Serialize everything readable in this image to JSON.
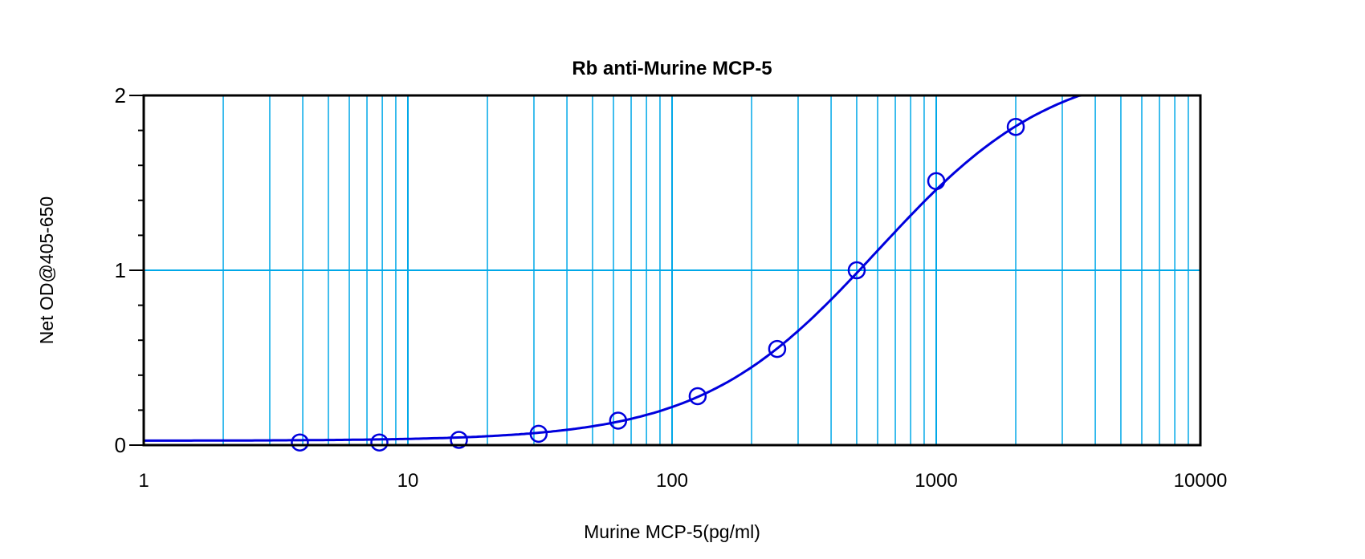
{
  "chart_data": {
    "type": "scatter",
    "title": "Rb anti-Murine MCP-5",
    "xlabel": "Murine MCP-5(pg/ml)",
    "ylabel": "Net OD@405-650",
    "x_scale": "log",
    "xlim": [
      1,
      10000
    ],
    "ylim": [
      0,
      2
    ],
    "x_ticks": [
      "1",
      "10",
      "100",
      "1000",
      "10000"
    ],
    "y_ticks": [
      "0",
      "1",
      "2"
    ],
    "grid": "vertical log minor lines and horizontal line at 1",
    "legend": "none",
    "fit_curve": "sigmoidal fit line through points",
    "points": [
      {
        "x": 3.9,
        "y": 0.015
      },
      {
        "x": 7.8,
        "y": 0.015
      },
      {
        "x": 15.6,
        "y": 0.03
      },
      {
        "x": 31.25,
        "y": 0.065
      },
      {
        "x": 62.5,
        "y": 0.14
      },
      {
        "x": 125,
        "y": 0.28
      },
      {
        "x": 250,
        "y": 0.55
      },
      {
        "x": 500,
        "y": 1.0
      },
      {
        "x": 1000,
        "y": 1.51
      },
      {
        "x": 2000,
        "y": 1.82
      }
    ],
    "colors": {
      "grid": "#00a8e8",
      "series": "#0000dd",
      "axis": "#000000"
    }
  }
}
